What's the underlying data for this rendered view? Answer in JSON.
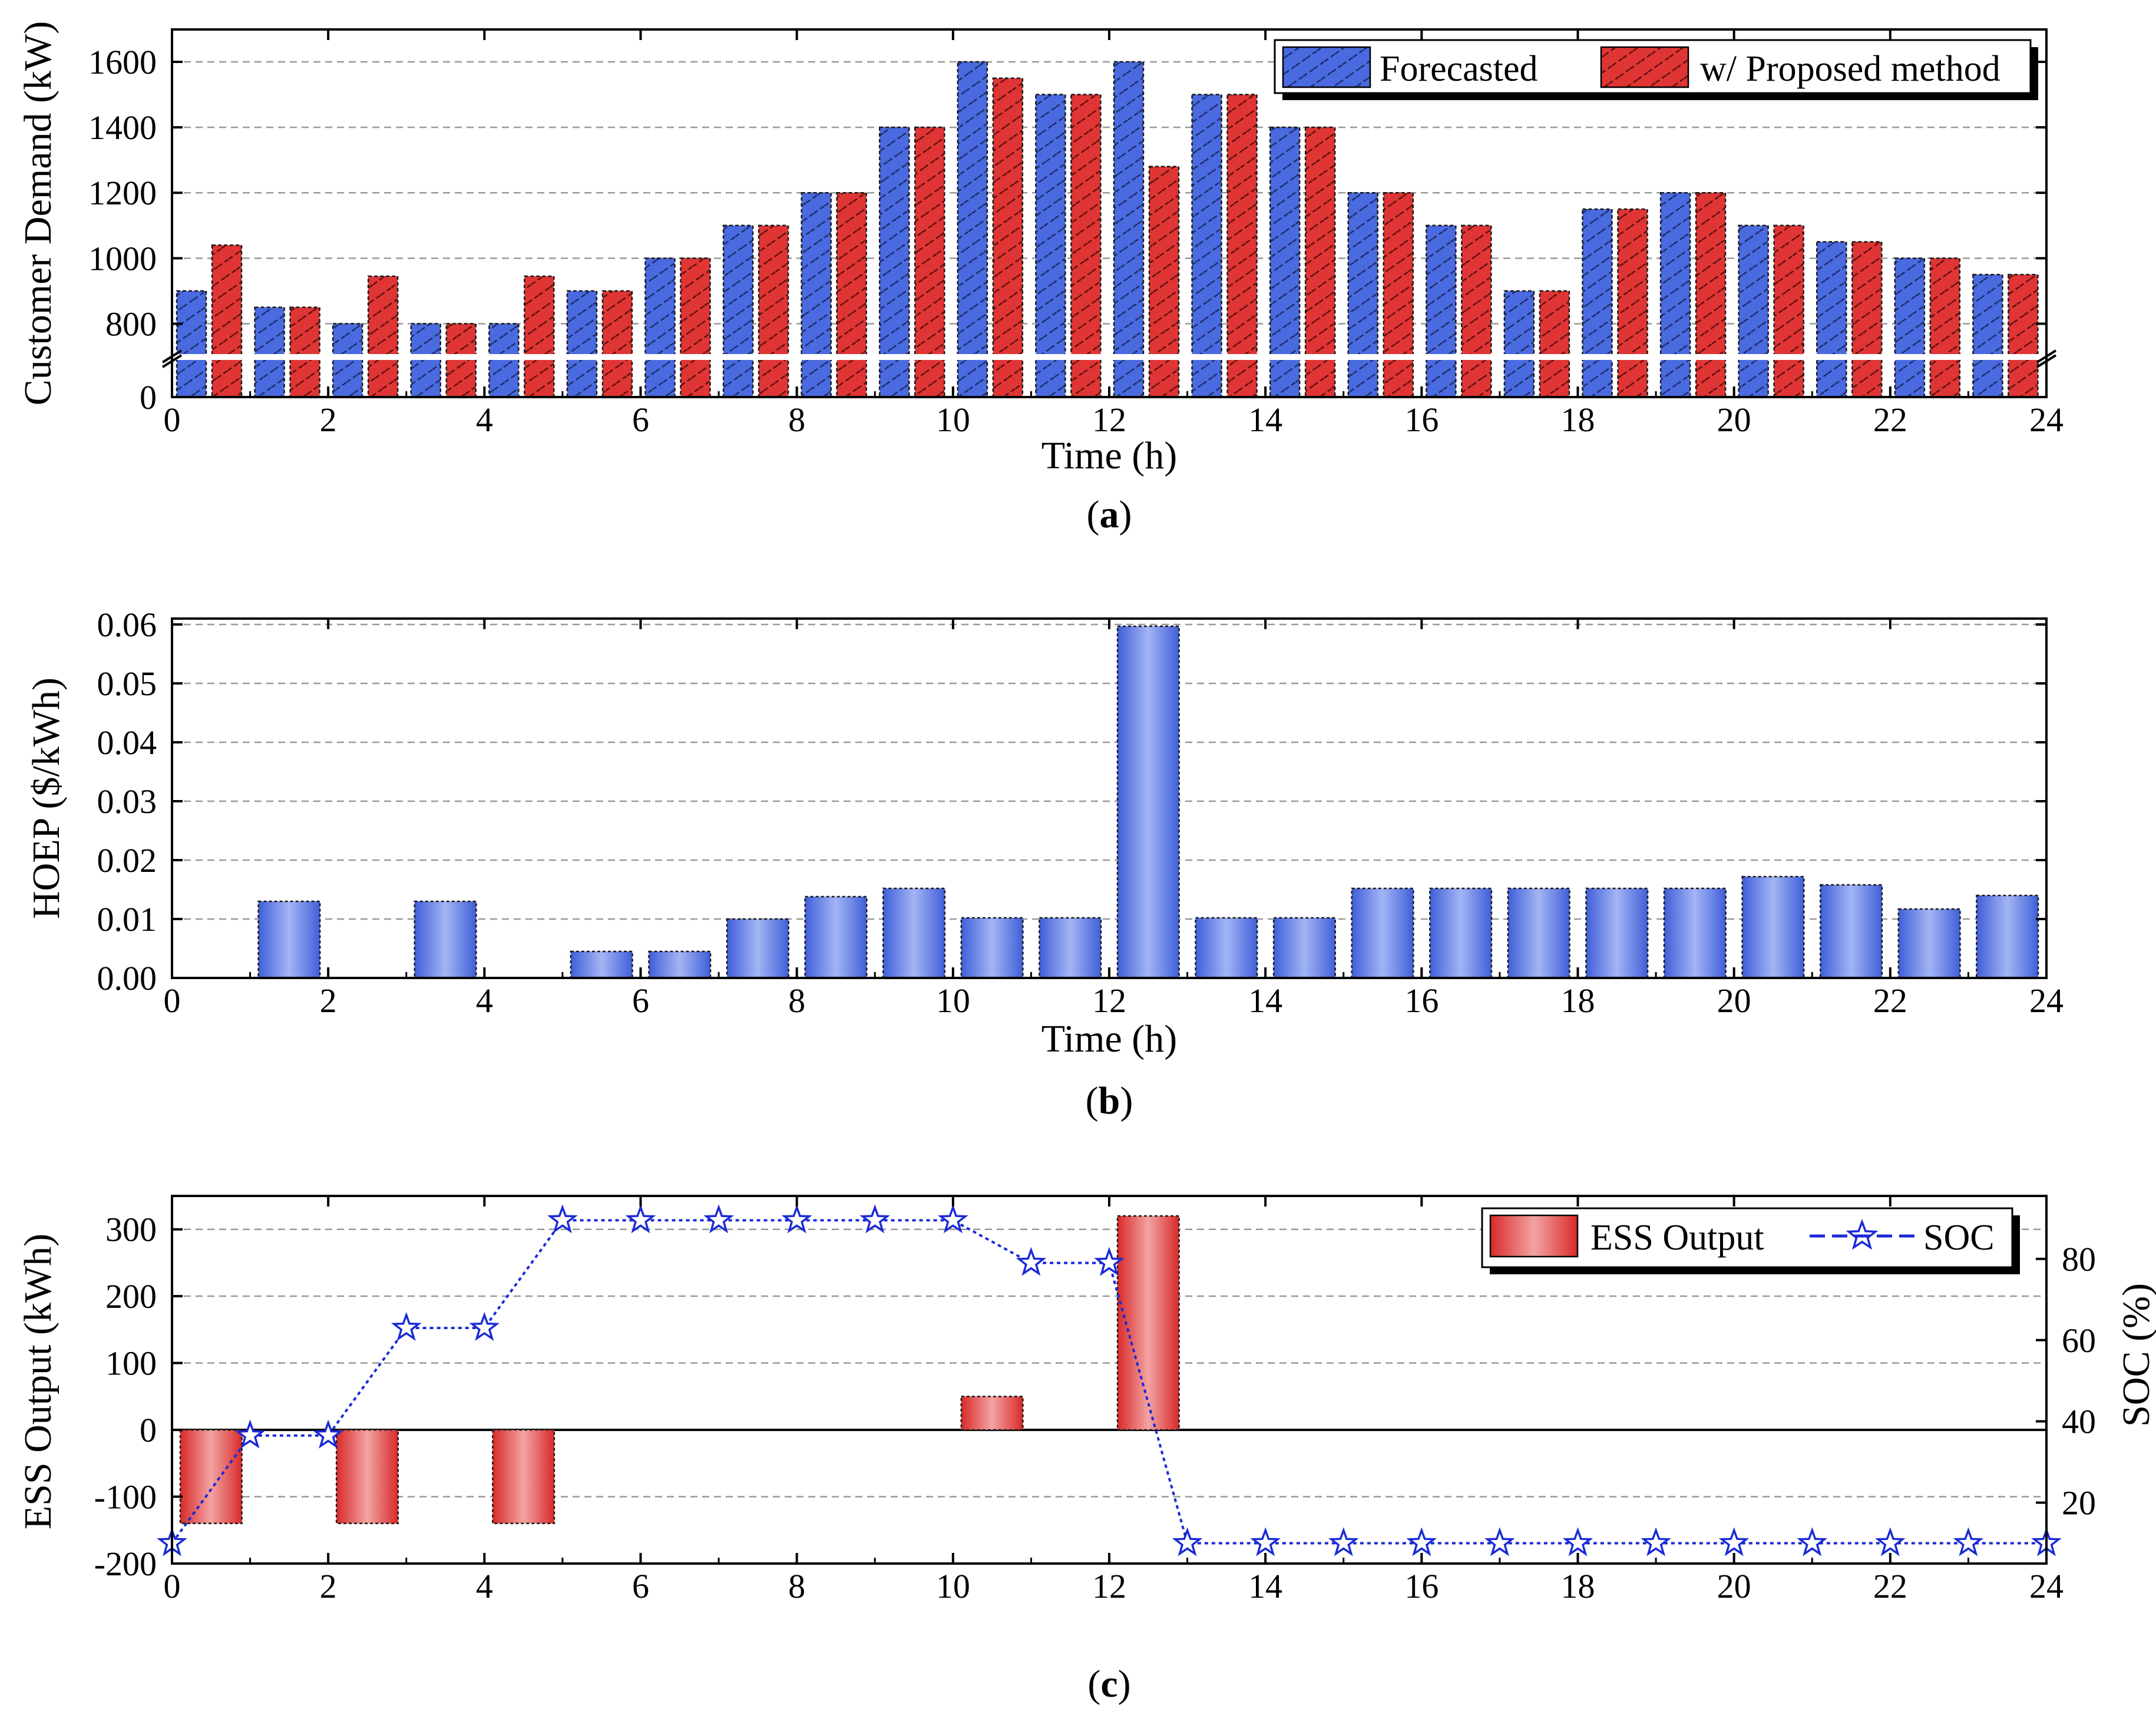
{
  "chart_data": [
    {
      "panel": "a",
      "type": "bar",
      "caption": {
        "open": "(",
        "letter": "a",
        "close": ")"
      },
      "xlabel": "Time (h)",
      "ylabel": "Customer Demand (kW)",
      "xlim": [
        0,
        24
      ],
      "xticks": [
        0,
        2,
        4,
        6,
        8,
        10,
        12,
        14,
        16,
        18,
        20,
        22,
        24
      ],
      "yticks": [
        0,
        800,
        1000,
        1200,
        1400,
        1600
      ],
      "axis_break": {
        "below": 0,
        "resume_at": 700,
        "top": 1700
      },
      "categories": [
        "1",
        "2",
        "3",
        "4",
        "5",
        "6",
        "7",
        "8",
        "9",
        "10",
        "11",
        "12",
        "13",
        "14",
        "15",
        "16",
        "17",
        "18",
        "19",
        "20",
        "21",
        "22",
        "23",
        "24"
      ],
      "series": [
        {
          "name": "Forecasted",
          "color": "#4a6ae0",
          "values": [
            900,
            850,
            800,
            800,
            800,
            900,
            1000,
            1100,
            1200,
            1400,
            1600,
            1500,
            1600,
            1500,
            1400,
            1200,
            1100,
            900,
            1150,
            1200,
            1100,
            1050,
            1000,
            950
          ]
        },
        {
          "name": "w/ Proposed method",
          "color": "#e03535",
          "values": [
            1040,
            850,
            945,
            800,
            945,
            900,
            1000,
            1100,
            1200,
            1400,
            1550,
            1500,
            1280,
            1500,
            1400,
            1200,
            1100,
            900,
            1150,
            1200,
            1100,
            1050,
            1000,
            950
          ]
        }
      ],
      "legend_position": "top-right"
    },
    {
      "panel": "b",
      "type": "bar",
      "caption": {
        "open": "(",
        "letter": "b",
        "close": ")"
      },
      "xlabel": "Time (h)",
      "ylabel": "HOEP ($/kWh)",
      "xlim": [
        0,
        24
      ],
      "ylim": [
        0,
        0.06
      ],
      "xticks": [
        0,
        2,
        4,
        6,
        8,
        10,
        12,
        14,
        16,
        18,
        20,
        22,
        24
      ],
      "yticks": [
        "0.00",
        "0.01",
        "0.02",
        "0.03",
        "0.04",
        "0.05",
        "0.06"
      ],
      "categories": [
        "1",
        "2",
        "3",
        "4",
        "5",
        "6",
        "7",
        "8",
        "9",
        "10",
        "11",
        "12",
        "13",
        "14",
        "15",
        "16",
        "17",
        "18",
        "19",
        "20",
        "21",
        "22",
        "23",
        "24"
      ],
      "series": [
        {
          "name": "HOEP",
          "color": "#5a7ae8",
          "values": [
            0,
            0.013,
            0,
            0.013,
            0,
            0.0045,
            0.0045,
            0.01,
            0.0138,
            0.0152,
            0.0102,
            0.0102,
            0.0597,
            0.0102,
            0.0102,
            0.0152,
            0.0152,
            0.0152,
            0.0152,
            0.0152,
            0.0172,
            0.0158,
            0.0117,
            0.014
          ]
        }
      ]
    },
    {
      "panel": "c",
      "type": "bar",
      "caption": {
        "open": "(",
        "letter": "c",
        "close": ")"
      },
      "xlabel": "",
      "ylabel": "ESS Output (kWh)",
      "y2label": "SOC (%)",
      "xlim": [
        0,
        24
      ],
      "ylim": [
        -200,
        350
      ],
      "y2lim": [
        5,
        95.5
      ],
      "xticks": [
        0,
        2,
        4,
        6,
        8,
        10,
        12,
        14,
        16,
        18,
        20,
        22,
        24
      ],
      "yticks": [
        -200,
        -100,
        0,
        100,
        200,
        300
      ],
      "y2ticks": [
        20,
        40,
        60,
        80
      ],
      "categories": [
        "1",
        "2",
        "3",
        "4",
        "5",
        "6",
        "7",
        "8",
        "9",
        "10",
        "11",
        "12",
        "13",
        "14",
        "15",
        "16",
        "17",
        "18",
        "19",
        "20",
        "21",
        "22",
        "23",
        "24"
      ],
      "series": [
        {
          "name": "ESS Output",
          "kind": "bar",
          "color": "#e03535",
          "values": [
            -140,
            0,
            -140,
            0,
            -140,
            0,
            0,
            0,
            0,
            0,
            50,
            0,
            320,
            0,
            0,
            0,
            0,
            0,
            0,
            0,
            0,
            0,
            0,
            0
          ]
        },
        {
          "name": "SOC",
          "kind": "line",
          "axis": "right",
          "color": "#1a2ad6",
          "x": [
            0,
            1,
            2,
            3,
            4,
            5,
            6,
            7,
            8,
            9,
            10,
            11,
            12,
            13,
            14,
            15,
            16,
            17,
            18,
            19,
            20,
            21,
            22,
            23,
            24
          ],
          "values": [
            10,
            36.5,
            36.5,
            63,
            63,
            89.5,
            89.5,
            89.5,
            89.5,
            89.5,
            89.5,
            79,
            79,
            10,
            10,
            10,
            10,
            10,
            10,
            10,
            10,
            10,
            10,
            10,
            10
          ]
        }
      ],
      "legend_position": "top-right"
    }
  ]
}
